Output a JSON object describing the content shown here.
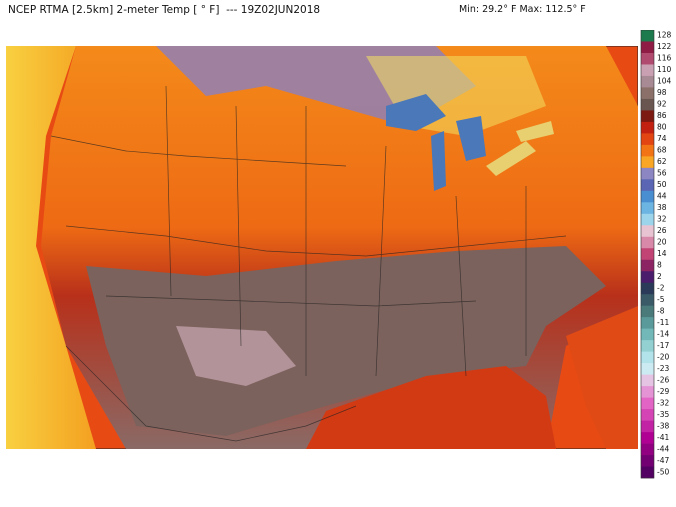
{
  "header": {
    "title": "NCEP RTMA [2.5km] 2-meter Temp [ ° F]  --- 19Z02JUN2018",
    "range": "Min: 29.2° F Max: 112.5° F"
  },
  "colorbar": {
    "labels": [
      128,
      122,
      116,
      110,
      104,
      98,
      92,
      86,
      80,
      74,
      68,
      62,
      56,
      50,
      44,
      38,
      32,
      26,
      20,
      14,
      8,
      2,
      -2,
      -5,
      -8,
      -11,
      -14,
      -17,
      -20,
      -23,
      -26,
      -29,
      -32,
      -35,
      -38,
      -41,
      -44,
      -47,
      -50
    ],
    "colors": [
      "#1c7a4c",
      "#8e1c44",
      "#b04a6e",
      "#c9a0b2",
      "#a88a94",
      "#8a7068",
      "#6a5650",
      "#7c1a12",
      "#c22010",
      "#e24412",
      "#f27414",
      "#f8a624",
      "#8c86c2",
      "#5a66b4",
      "#4a8ed2",
      "#6cb4e2",
      "#9cd4ec",
      "#e8c4d2",
      "#d888a8",
      "#c24474",
      "#8c2464",
      "#4c1c6c",
      "#2a3a58",
      "#3a5a68",
      "#4a7a7a",
      "#5a9a9a",
      "#72b8b8",
      "#92d0d2",
      "#b2e2ea",
      "#cceaf2",
      "#e4c4e2",
      "#e494d4",
      "#e264c4",
      "#d444b4",
      "#c222a4",
      "#b00094",
      "#920082",
      "#720072",
      "#520062"
    ]
  }
}
